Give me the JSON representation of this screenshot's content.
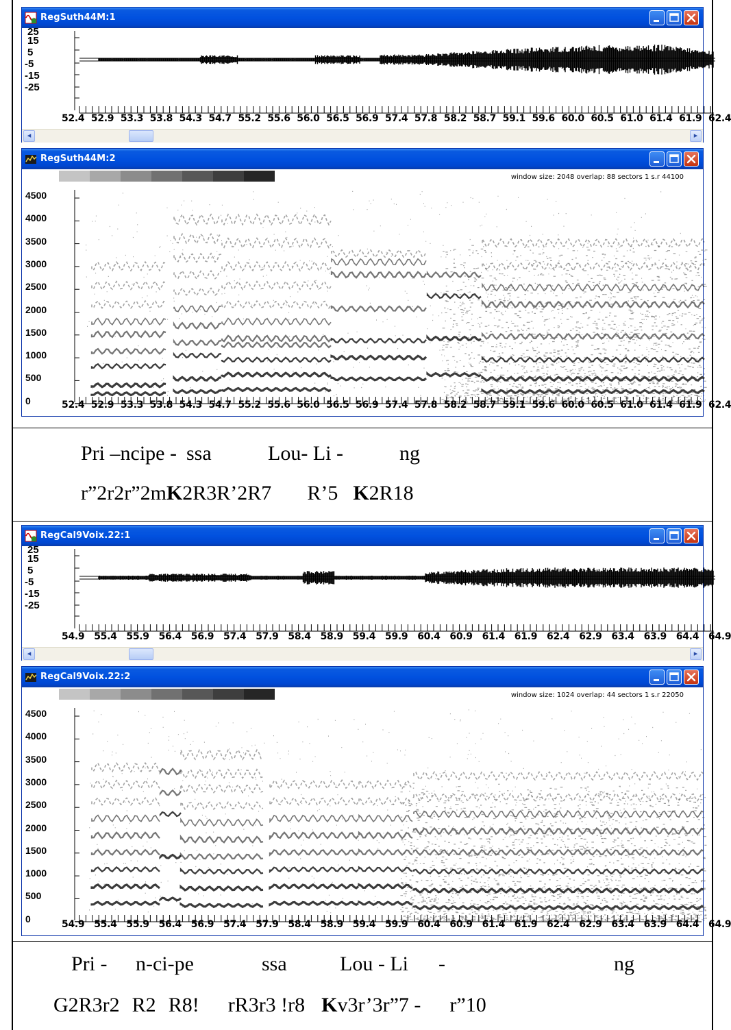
{
  "panels": [
    {
      "waveform": {
        "title": "RegSuth44M:1",
        "y_ticks": [
          "25",
          "15",
          "5",
          "-5",
          "-15",
          "-25"
        ],
        "x_ticks": [
          "52.4",
          "52.9",
          "53.3",
          "53.8",
          "54.3",
          "54.7",
          "55.2",
          "55.6",
          "56.0",
          "56.5",
          "56.9",
          "57.4",
          "57.8",
          "58.2",
          "58.7",
          "59.1",
          "59.6",
          "60.0",
          "60.5",
          "61.0",
          "61.4",
          "61.9",
          "62.4"
        ]
      },
      "spectrogram": {
        "title": "RegSuth44M:2",
        "settings_text": "window size: 2048 overlap: 88 sectors 1 s.r 44100",
        "y_ticks": [
          "4500",
          "4000",
          "3500",
          "3000",
          "2500",
          "2000",
          "1500",
          "1000",
          "500",
          "0"
        ],
        "x_ticks": [
          "52.4",
          "52.9",
          "53.3",
          "53.8",
          "54.3",
          "54.7",
          "55.2",
          "55.6",
          "56.0",
          "56.5",
          "56.9",
          "57.4",
          "57.8",
          "58.2",
          "58.7",
          "59.1",
          "59.6",
          "60.0",
          "60.5",
          "61.0",
          "61.4",
          "61.9",
          "62.4"
        ]
      },
      "lyrics": [
        {
          "text": "Pri –ncipe -"
        },
        {
          "text": "ssa"
        },
        {
          "text": "Lou- Li -"
        },
        {
          "text": "ng"
        }
      ],
      "notation": [
        {
          "text": "r”2r2r”2m",
          "bold": false
        },
        {
          "text": "K",
          "bold": true
        },
        {
          "text": "2R3R’2R7",
          "bold": false
        },
        {
          "text": "R’5",
          "bold": false
        },
        {
          "text": "K",
          "bold": true
        },
        {
          "text": "2R18",
          "bold": false
        }
      ]
    },
    {
      "waveform": {
        "title": "RegCal9Voix.22:1",
        "y_ticks": [
          "25",
          "15",
          "5",
          "-5",
          "-15",
          "-25"
        ],
        "x_ticks": [
          "54.9",
          "55.4",
          "55.9",
          "56.4",
          "56.9",
          "57.4",
          "57.9",
          "58.4",
          "58.9",
          "59.4",
          "59.9",
          "60.4",
          "60.9",
          "61.4",
          "61.9",
          "62.4",
          "62.9",
          "63.4",
          "63.9",
          "64.4",
          "64.9"
        ]
      },
      "spectrogram": {
        "title": "RegCal9Voix.22:2",
        "settings_text": "window size: 1024 overlap: 44 sectors 1 s.r 22050",
        "y_ticks": [
          "4500",
          "4000",
          "3500",
          "3000",
          "2500",
          "2000",
          "1500",
          "1000",
          "500",
          "0"
        ],
        "x_ticks": [
          "54.9",
          "55.4",
          "55.9",
          "56.4",
          "56.9",
          "57.4",
          "57.9",
          "58.4",
          "58.9",
          "59.4",
          "59.9",
          "60.4",
          "60.9",
          "61.4",
          "61.9",
          "62.4",
          "62.9",
          "63.4",
          "63.9",
          "64.4",
          "64.9"
        ]
      },
      "lyrics": [
        {
          "text": "Pri -"
        },
        {
          "text": "n-ci-pe"
        },
        {
          "text": "ssa"
        },
        {
          "text": "Lou - Li"
        },
        {
          "text": "-"
        },
        {
          "text": "ng"
        }
      ],
      "notation": [
        {
          "text": "G2R3r2",
          "bold": false
        },
        {
          "text": "R2",
          "bold": false
        },
        {
          "text": "R8!",
          "bold": false
        },
        {
          "text": "rR3r3 !r8",
          "bold": false
        },
        {
          "text": "K",
          "bold": true
        },
        {
          "text": "v3r’3r”7 -",
          "bold": false
        },
        {
          "text": "r”10",
          "bold": false
        }
      ]
    }
  ],
  "colors": {
    "titlebar": "#0151df",
    "window_border": "#0831a8",
    "close_button": "#d4481f",
    "waveform": "#000000",
    "spectrogram_ink": "#1a1a1a"
  },
  "icons": {
    "waveform_window": "waveform-app-icon",
    "spectrogram_window": "spectrogram-app-icon",
    "minimize": "minimize-icon",
    "maximize": "maximize-icon",
    "close": "close-icon",
    "scroll_left": "arrow-left-icon",
    "scroll_right": "arrow-right-icon"
  },
  "spectrogram_scale_shades": [
    "#c4c4c4",
    "#a8a8a8",
    "#8c8c8c",
    "#717171",
    "#575757",
    "#3e3e3e",
    "#262626"
  ]
}
